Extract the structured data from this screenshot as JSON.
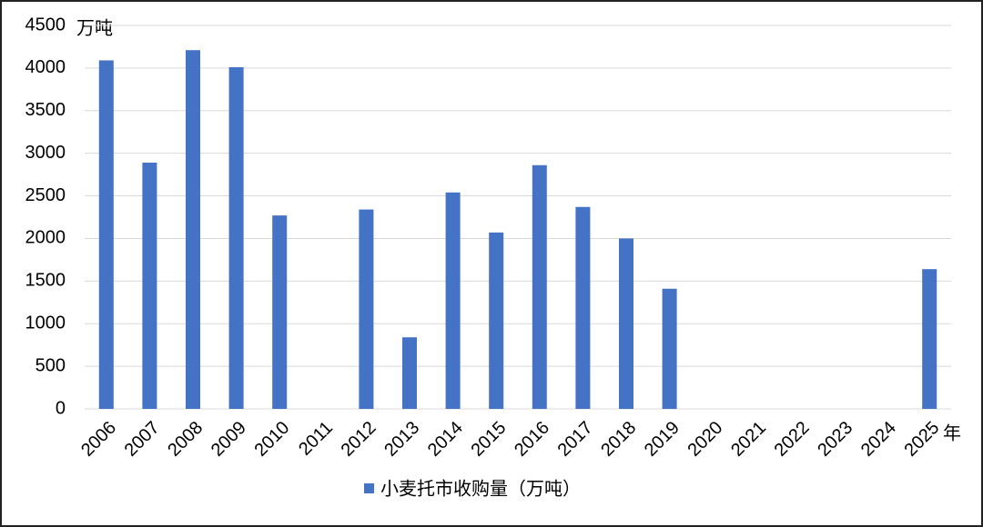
{
  "chart_data": {
    "type": "bar",
    "y_unit": "万吨",
    "x_unit": "年",
    "categories": [
      "2006",
      "2007",
      "2008",
      "2009",
      "2010",
      "2011",
      "2012",
      "2013",
      "2014",
      "2015",
      "2016",
      "2017",
      "2018",
      "2019",
      "2020",
      "2021",
      "2022",
      "2023",
      "2024",
      "2025"
    ],
    "series": [
      {
        "name": "小麦托市收购量（万吨）",
        "color": "#4472c4",
        "values": [
          4090,
          2890,
          4210,
          4010,
          2270,
          null,
          2340,
          840,
          2540,
          2070,
          2860,
          2370,
          2000,
          1410,
          null,
          null,
          null,
          null,
          null,
          1640
        ]
      }
    ],
    "ylim": [
      0,
      4500
    ],
    "yticks": [
      0,
      500,
      1000,
      1500,
      2000,
      2500,
      3000,
      3500,
      4000,
      4500
    ],
    "grid": true,
    "legend": "bottom"
  }
}
